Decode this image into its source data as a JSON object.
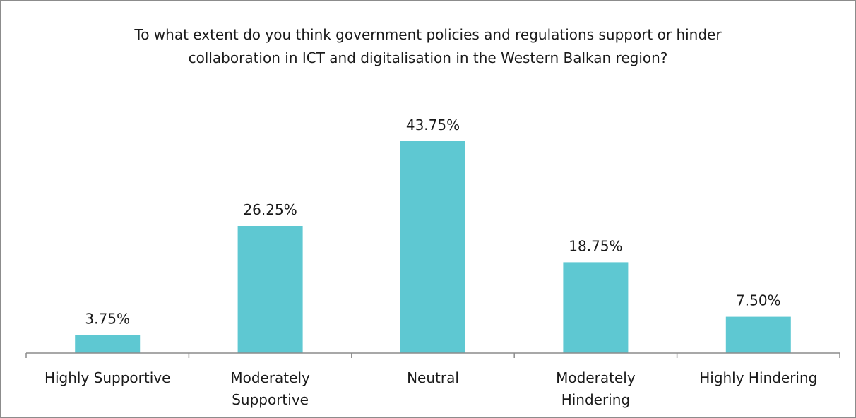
{
  "chart_data": {
    "type": "bar",
    "title": "To what extent do you think government policies and regulations support or hinder\ncollaboration in ICT and digitalisation in the Western Balkan region?",
    "xlabel": "",
    "ylabel": "",
    "categories": [
      "Highly Supportive",
      "Moderately\nSupportive",
      "Neutral",
      "Moderately\nHindering",
      "Highly Hindering"
    ],
    "values": [
      3.75,
      26.25,
      43.75,
      18.75,
      7.5
    ],
    "data_labels": [
      "3.75%",
      "26.25%",
      "43.75%",
      "18.75%",
      "7.50%"
    ],
    "ylim": [
      0,
      50
    ],
    "grid": false,
    "legend": "none",
    "colors": {
      "bar": "#5ec8d2",
      "axis": "#8c8c8c",
      "text": "#1a1a1a",
      "border": "#8c8c8c"
    }
  }
}
